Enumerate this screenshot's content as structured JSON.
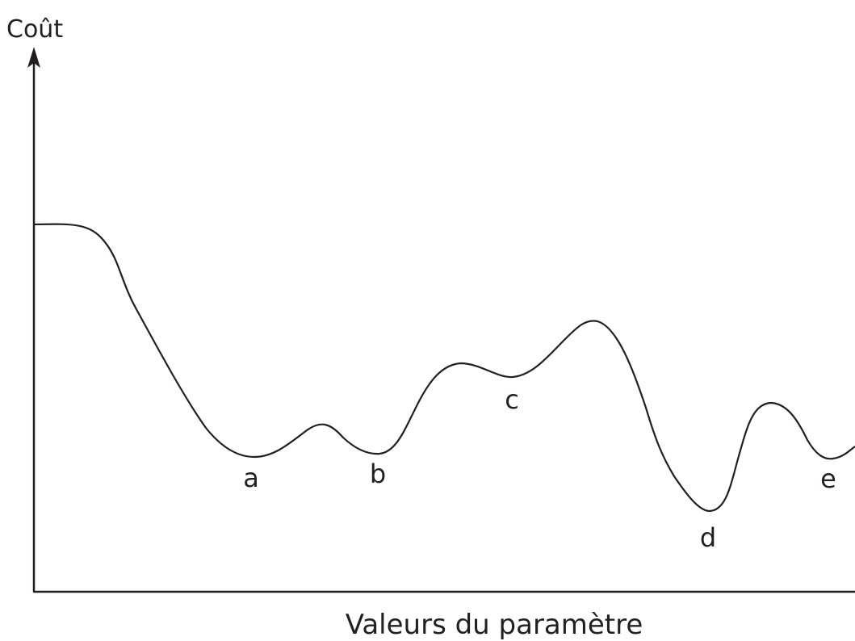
{
  "axes": {
    "y_label": "Coût",
    "x_label": "Valeurs du paramètre"
  },
  "points": [
    {
      "label": "a"
    },
    {
      "label": "b"
    },
    {
      "label": "c"
    },
    {
      "label": "d"
    },
    {
      "label": "e"
    }
  ]
}
